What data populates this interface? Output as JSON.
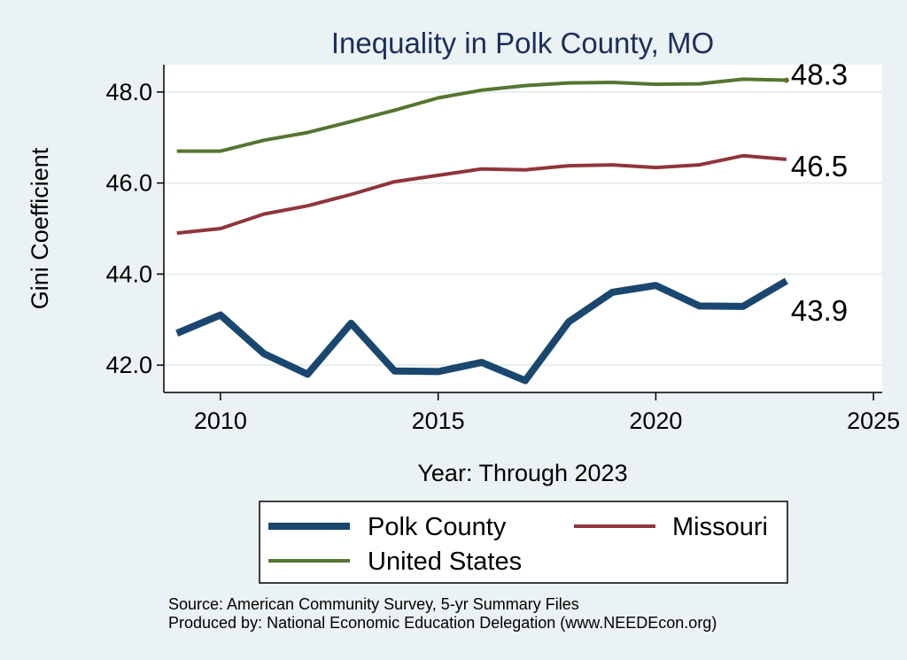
{
  "chart_data": {
    "type": "line",
    "title": "Inequality in Polk County, MO",
    "xlabel": "Year: Through 2023",
    "ylabel": "Gini Coefficient",
    "xlim": [
      2008.7,
      2025.2
    ],
    "ylim": [
      41.4,
      48.6
    ],
    "x_ticks": [
      2010,
      2015,
      2020,
      2025
    ],
    "y_ticks": [
      42.0,
      44.0,
      46.0,
      48.0
    ],
    "y_tick_labels": [
      "42.0",
      "44.0",
      "46.0",
      "48.0"
    ],
    "x": [
      2009,
      2010,
      2011,
      2012,
      2013,
      2014,
      2015,
      2016,
      2017,
      2018,
      2019,
      2020,
      2021,
      2022,
      2023
    ],
    "series": [
      {
        "name": "Polk County",
        "color": "#1a476f",
        "values": [
          42.7,
          43.1,
          42.25,
          41.8,
          42.92,
          41.87,
          41.86,
          42.06,
          41.66,
          42.95,
          43.6,
          43.75,
          43.3,
          43.29,
          43.85
        ],
        "end_label": "43.9"
      },
      {
        "name": "Missouri",
        "color": "#90353b",
        "values": [
          44.9,
          45.0,
          45.32,
          45.5,
          45.75,
          46.03,
          46.17,
          46.31,
          46.29,
          46.38,
          46.4,
          46.34,
          46.4,
          46.6,
          46.52
        ],
        "end_label": "46.5"
      },
      {
        "name": "United States",
        "color": "#55752f",
        "values": [
          46.7,
          46.7,
          46.94,
          47.11,
          47.35,
          47.6,
          47.87,
          48.04,
          48.14,
          48.2,
          48.21,
          48.17,
          48.18,
          48.28,
          48.26
        ],
        "end_label": "48.3"
      }
    ],
    "legend": {
      "position": "bottom",
      "entries": [
        "Polk County",
        "Missouri",
        "United States"
      ]
    },
    "notes": [
      "Source: American Community Survey, 5-yr Summary Files",
      "Produced by: National Economic Education Delegation (www.NEEDEcon.org)"
    ]
  },
  "colors": {
    "background": "#eaf2f3",
    "plot_background": "#ffffff",
    "title": "#1e2d5c"
  }
}
